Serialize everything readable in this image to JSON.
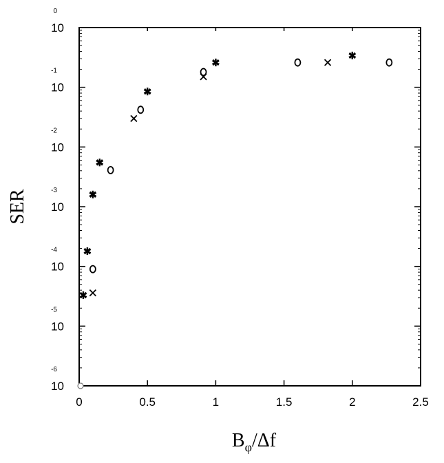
{
  "chart_data": {
    "type": "scatter",
    "title": "",
    "xlabel": "B",
    "xlabel_sub": "φ",
    "xlabel_tail": "/Δf",
    "ylabel": "SER",
    "xlim": [
      0,
      2.5
    ],
    "ylim": [
      1e-06,
      1
    ],
    "yscale": "log",
    "grid": false,
    "x_ticks": [
      {
        "value": 0,
        "label": "0"
      },
      {
        "value": 0.5,
        "label": "0.5"
      },
      {
        "value": 1,
        "label": "1"
      },
      {
        "value": 1.5,
        "label": "1.5"
      },
      {
        "value": 2,
        "label": "2"
      },
      {
        "value": 2.5,
        "label": "2.5"
      }
    ],
    "y_ticks": [
      {
        "exp": 0,
        "base": "10",
        "exp_label": "0"
      },
      {
        "exp": -1,
        "base": "10",
        "exp_label": "-1"
      },
      {
        "exp": -2,
        "base": "10",
        "exp_label": "-2"
      },
      {
        "exp": -3,
        "base": "10",
        "exp_label": "-3"
      },
      {
        "exp": -4,
        "base": "10",
        "exp_label": "-4"
      },
      {
        "exp": -5,
        "base": "10",
        "exp_label": "-5"
      },
      {
        "exp": -6,
        "base": "10",
        "exp_label": "-6"
      }
    ],
    "series": [
      {
        "marker": "*",
        "points": [
          {
            "x": 0.03,
            "y": 3.3e-05
          },
          {
            "x": 0.06,
            "y": 0.00018
          },
          {
            "x": 0.1,
            "y": 0.0016
          },
          {
            "x": 0.15,
            "y": 0.0055
          },
          {
            "x": 0.5,
            "y": 0.085
          },
          {
            "x": 1.0,
            "y": 0.26
          },
          {
            "x": 2.0,
            "y": 0.34
          }
        ]
      },
      {
        "marker": "o",
        "points": [
          {
            "x": 0.1,
            "y": 9e-05
          },
          {
            "x": 0.23,
            "y": 0.0041
          },
          {
            "x": 0.45,
            "y": 0.042
          },
          {
            "x": 0.91,
            "y": 0.18
          },
          {
            "x": 1.6,
            "y": 0.26
          },
          {
            "x": 2.27,
            "y": 0.26
          }
        ]
      },
      {
        "marker": "x",
        "points": [
          {
            "x": 0.1,
            "y": 3.6e-05
          },
          {
            "x": 0.4,
            "y": 0.03
          },
          {
            "x": 0.91,
            "y": 0.15
          },
          {
            "x": 1.82,
            "y": 0.26
          }
        ]
      }
    ]
  }
}
